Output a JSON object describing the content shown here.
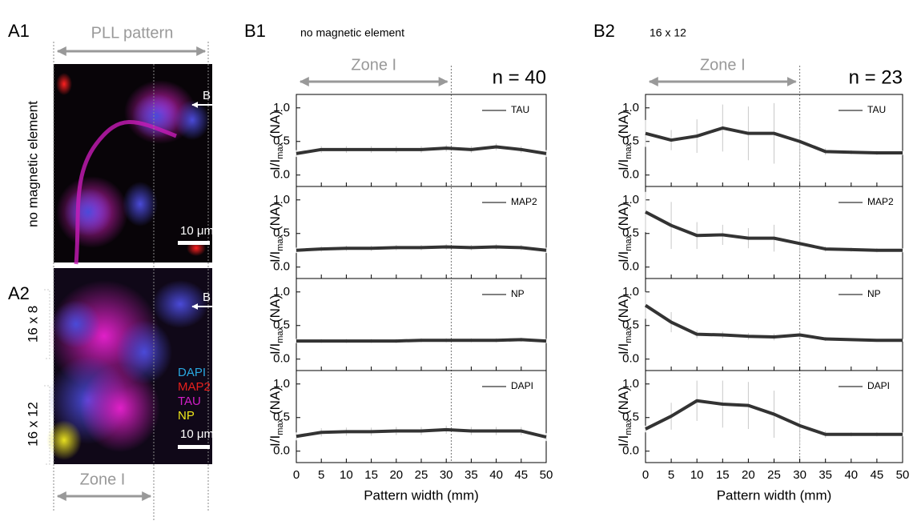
{
  "images": [
    {
      "label": "A1",
      "header": "PLL pattern",
      "side_labels": [
        "no magnetic element"
      ],
      "scale": "10 μm",
      "arrow": "B"
    },
    {
      "label": "A2",
      "side_labels": [
        "16 x 8",
        "16 x 12"
      ],
      "scale": "10 μm",
      "arrow": "B",
      "footer": "Zone I",
      "channels": [
        {
          "name": "DAPI",
          "color": "#2aa8e0"
        },
        {
          "name": "MAP2",
          "color": "#e8201c"
        },
        {
          "name": "TAU",
          "color": "#d21ec8"
        },
        {
          "name": "NP",
          "color": "#f0e81a"
        }
      ]
    }
  ],
  "panels": [
    {
      "label": "B1",
      "subtitle": "no magnetic element",
      "n_label": "n = 40",
      "zone_label": "Zone I",
      "zone_end": 31,
      "x_label": "Pattern width (mm)"
    },
    {
      "label": "B2",
      "subtitle": "16 x 12",
      "n_label": "n = 23",
      "zone_label": "Zone I",
      "zone_end": 30,
      "x_label": "Pattern width (mm)"
    }
  ],
  "chart_data": [
    {
      "type": "line",
      "x": [
        0,
        5,
        10,
        15,
        20,
        25,
        30,
        35,
        40,
        45,
        50
      ],
      "series": [
        {
          "name": "TAU",
          "color": "#333333",
          "values": [
            0.32,
            0.38,
            0.38,
            0.38,
            0.38,
            0.38,
            0.4,
            0.38,
            0.42,
            0.38,
            0.32
          ],
          "errors": [
            0.05,
            0.05,
            0.05,
            0.05,
            0.05,
            0.05,
            0.05,
            0.05,
            0.05,
            0.05,
            0.05
          ]
        }
      ],
      "y_label": {
        "main": "I/I",
        "sub": "max",
        "unit": "(NA)"
      },
      "xlim": [
        0,
        50
      ],
      "ylim": [
        -0.17,
        1.2
      ],
      "xticks": [
        0,
        5,
        10,
        15,
        20,
        25,
        30,
        35,
        40,
        45,
        50
      ],
      "yticks": [
        {
          "value": 0,
          "label": "0.0"
        },
        {
          "value": 0.5,
          "label": "0.5"
        },
        {
          "value": 1,
          "label": "1.0"
        }
      ]
    },
    {
      "type": "line",
      "x": [
        0,
        5,
        10,
        15,
        20,
        25,
        30,
        35,
        40,
        45,
        50
      ],
      "series": [
        {
          "name": "MAP2",
          "color": "#333333",
          "values": [
            0.25,
            0.27,
            0.28,
            0.28,
            0.29,
            0.29,
            0.3,
            0.29,
            0.3,
            0.29,
            0.25
          ],
          "errors": [
            0.04,
            0.04,
            0.04,
            0.04,
            0.04,
            0.04,
            0.04,
            0.04,
            0.04,
            0.04,
            0.04
          ]
        }
      ],
      "y_label": {
        "main": "I/I",
        "sub": "max",
        "unit": "(NA)"
      },
      "xlim": [
        0,
        50
      ],
      "ylim": [
        -0.17,
        1.2
      ],
      "xticks": [
        0,
        5,
        10,
        15,
        20,
        25,
        30,
        35,
        40,
        45,
        50
      ],
      "yticks": [
        {
          "value": 0,
          "label": "0.0"
        },
        {
          "value": 0.5,
          "label": "0.5"
        },
        {
          "value": 1,
          "label": "1.0"
        }
      ]
    },
    {
      "type": "line",
      "x": [
        0,
        5,
        10,
        15,
        20,
        25,
        30,
        35,
        40,
        45,
        50
      ],
      "series": [
        {
          "name": "NP",
          "color": "#333333",
          "values": [
            0.27,
            0.27,
            0.27,
            0.27,
            0.27,
            0.28,
            0.28,
            0.28,
            0.28,
            0.29,
            0.27
          ],
          "errors": [
            0.03,
            0.03,
            0.03,
            0.03,
            0.03,
            0.03,
            0.03,
            0.03,
            0.03,
            0.03,
            0.03
          ]
        }
      ],
      "y_label": {
        "main": "I/I",
        "sub": "max",
        "unit": "(NA)"
      },
      "xlim": [
        0,
        50
      ],
      "ylim": [
        -0.17,
        1.2
      ],
      "xticks": [
        0,
        5,
        10,
        15,
        20,
        25,
        30,
        35,
        40,
        45,
        50
      ],
      "yticks": [
        {
          "value": 0,
          "label": "0.0"
        },
        {
          "value": 0.5,
          "label": "0.5"
        },
        {
          "value": 1,
          "label": "1.0"
        }
      ]
    },
    {
      "type": "line",
      "x": [
        0,
        5,
        10,
        15,
        20,
        25,
        30,
        35,
        40,
        45,
        50
      ],
      "series": [
        {
          "name": "DAPI",
          "color": "#333333",
          "values": [
            0.22,
            0.28,
            0.29,
            0.29,
            0.3,
            0.3,
            0.32,
            0.3,
            0.3,
            0.3,
            0.21
          ],
          "errors": [
            0.06,
            0.06,
            0.06,
            0.06,
            0.06,
            0.06,
            0.06,
            0.06,
            0.06,
            0.06,
            0.06
          ]
        }
      ],
      "y_label": {
        "main": "I/I",
        "sub": "max",
        "unit": "(NA)"
      },
      "xlim": [
        0,
        50
      ],
      "ylim": [
        -0.17,
        1.2
      ],
      "xticks": [
        0,
        5,
        10,
        15,
        20,
        25,
        30,
        35,
        40,
        45,
        50
      ],
      "yticks": [
        {
          "value": 0,
          "label": "0.0"
        },
        {
          "value": 0.5,
          "label": "0.5"
        },
        {
          "value": 1,
          "label": "1.0"
        }
      ]
    },
    {
      "type": "line",
      "x": [
        0,
        5,
        10,
        15,
        20,
        25,
        30,
        35,
        40,
        45,
        50
      ],
      "series": [
        {
          "name": "TAU",
          "color": "#333333",
          "values": [
            0.62,
            0.52,
            0.58,
            0.7,
            0.62,
            0.62,
            0.5,
            0.35,
            0.34,
            0.33,
            0.33
          ],
          "errors": [
            0.2,
            0.15,
            0.25,
            0.35,
            0.4,
            0.45,
            0.35,
            0.05,
            0.03,
            0.03,
            0.03
          ]
        }
      ],
      "y_label": {
        "main": "I/I",
        "sub": "max",
        "unit": "(NA)"
      },
      "xlim": [
        0,
        50
      ],
      "ylim": [
        -0.17,
        1.2
      ],
      "xticks": [
        0,
        5,
        10,
        15,
        20,
        25,
        30,
        35,
        40,
        45,
        50
      ],
      "yticks": [
        {
          "value": 0,
          "label": "0.0"
        },
        {
          "value": 0.5,
          "label": "0.5"
        },
        {
          "value": 1,
          "label": "1.0"
        }
      ]
    },
    {
      "type": "line",
      "x": [
        0,
        5,
        10,
        15,
        20,
        25,
        30,
        35,
        40,
        45,
        50
      ],
      "series": [
        {
          "name": "MAP2",
          "color": "#333333",
          "values": [
            0.82,
            0.62,
            0.47,
            0.48,
            0.43,
            0.43,
            0.35,
            0.27,
            0.26,
            0.25,
            0.25
          ],
          "errors": [
            0.3,
            0.35,
            0.2,
            0.15,
            0.15,
            0.2,
            0.15,
            0.04,
            0.03,
            0.03,
            0.03
          ]
        }
      ],
      "y_label": {
        "main": "I/I",
        "sub": "max",
        "unit": "(NA)"
      },
      "xlim": [
        0,
        50
      ],
      "ylim": [
        -0.17,
        1.2
      ],
      "xticks": [
        0,
        5,
        10,
        15,
        20,
        25,
        30,
        35,
        40,
        45,
        50
      ],
      "yticks": [
        {
          "value": 0,
          "label": "0.0"
        },
        {
          "value": 0.5,
          "label": "0.5"
        },
        {
          "value": 1,
          "label": "1.0"
        }
      ]
    },
    {
      "type": "line",
      "x": [
        0,
        5,
        10,
        15,
        20,
        25,
        30,
        35,
        40,
        45,
        50
      ],
      "series": [
        {
          "name": "NP",
          "color": "#333333",
          "values": [
            0.8,
            0.55,
            0.37,
            0.36,
            0.34,
            0.33,
            0.36,
            0.3,
            0.29,
            0.28,
            0.28
          ],
          "errors": [
            0.2,
            0.15,
            0.06,
            0.05,
            0.05,
            0.05,
            0.05,
            0.03,
            0.02,
            0.02,
            0.02
          ]
        }
      ],
      "y_label": {
        "main": "I/I",
        "sub": "max",
        "unit": "(NA)"
      },
      "xlim": [
        0,
        50
      ],
      "ylim": [
        -0.17,
        1.2
      ],
      "xticks": [
        0,
        5,
        10,
        15,
        20,
        25,
        30,
        35,
        40,
        45,
        50
      ],
      "yticks": [
        {
          "value": 0,
          "label": "0.0"
        },
        {
          "value": 0.5,
          "label": "0.5"
        },
        {
          "value": 1,
          "label": "1.0"
        }
      ]
    },
    {
      "type": "line",
      "x": [
        0,
        5,
        10,
        15,
        20,
        25,
        30,
        35,
        40,
        45,
        50
      ],
      "series": [
        {
          "name": "DAPI",
          "color": "#333333",
          "values": [
            0.33,
            0.52,
            0.75,
            0.7,
            0.68,
            0.55,
            0.38,
            0.25,
            0.25,
            0.25,
            0.25
          ],
          "errors": [
            0.05,
            0.2,
            0.3,
            0.35,
            0.35,
            0.35,
            0.3,
            0.05,
            0.03,
            0.03,
            0.03
          ]
        }
      ],
      "y_label": {
        "main": "I/I",
        "sub": "max",
        "unit": "(NA)"
      },
      "xlim": [
        0,
        50
      ],
      "ylim": [
        -0.17,
        1.2
      ],
      "xticks": [
        0,
        5,
        10,
        15,
        20,
        25,
        30,
        35,
        40,
        45,
        50
      ],
      "yticks": [
        {
          "value": 0,
          "label": "0.0"
        },
        {
          "value": 0.5,
          "label": "0.5"
        },
        {
          "value": 1,
          "label": "1.0"
        }
      ]
    }
  ]
}
